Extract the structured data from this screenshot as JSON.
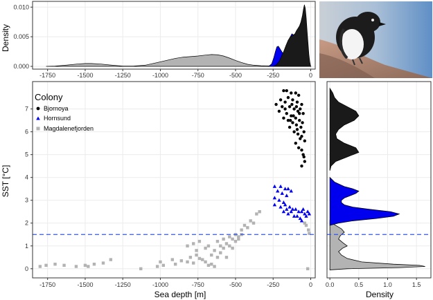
{
  "chart_data": [
    {
      "panel": "top-density",
      "type": "area",
      "xlabel": "",
      "ylabel": "Density",
      "xlim": [
        -1850,
        30
      ],
      "ylim": [
        0,
        0.0105
      ],
      "xticks": [
        "-1750",
        "-1500",
        "-1250",
        "-1000",
        "-750",
        "-500",
        "-250",
        "0"
      ],
      "xtick_values": [
        -1750,
        -1500,
        -1250,
        -1000,
        -750,
        -500,
        -250,
        0
      ],
      "yticks": [
        "0.000",
        "0.005",
        "0.010"
      ],
      "ytick_values": [
        0,
        0.005,
        0.01
      ],
      "series": [
        {
          "colony": "Magdalenefjorden",
          "color": "#b3b3b3",
          "x": [
            -1760,
            -1700,
            -1620,
            -1550,
            -1500,
            -1460,
            -1400,
            -1330,
            -1250,
            -1180,
            -1100,
            -1020,
            -960,
            -900,
            -850,
            -800,
            -750,
            -700,
            -660,
            -620,
            -580,
            -540,
            -500,
            -460,
            -420,
            -380,
            -330,
            -280,
            -240,
            -200,
            -160,
            -120,
            -80,
            -40,
            -10,
            0
          ],
          "y": [
            0.0,
            5e-05,
            0.00022,
            0.0004,
            0.00048,
            0.00048,
            0.0004,
            0.00022,
            5e-05,
            5e-05,
            0.0002,
            0.00065,
            0.001,
            0.00135,
            0.00155,
            0.00165,
            0.00175,
            0.0019,
            0.002,
            0.00195,
            0.00175,
            0.0014,
            0.001,
            0.00065,
            0.00035,
            0.0002,
            0.0001,
            8e-05,
            0.0001,
            0.00015,
            0.0002,
            0.0002,
            0.00025,
            0.0003,
            0.0002,
            0.0
          ]
        },
        {
          "colony": "Hornsund",
          "color": "#0000ee",
          "x": [
            -280,
            -260,
            -245,
            -235,
            -225,
            -215,
            -200,
            -185,
            -170,
            -155,
            -140,
            -125,
            -110,
            -95,
            -80,
            -65,
            -50,
            -40,
            -30,
            -20,
            -10,
            0
          ],
          "y": [
            0.0,
            0.0004,
            0.0015,
            0.0025,
            0.0033,
            0.0034,
            0.0028,
            0.0022,
            0.0025,
            0.0036,
            0.0048,
            0.0055,
            0.0052,
            0.0048,
            0.0058,
            0.0066,
            0.0055,
            0.0035,
            0.002,
            0.001,
            0.0003,
            0.0
          ]
        },
        {
          "colony": "Bjornoya",
          "color": "#1a1a1a",
          "x": [
            -250,
            -230,
            -210,
            -195,
            -180,
            -165,
            -150,
            -135,
            -120,
            -105,
            -95,
            -85,
            -75,
            -65,
            -55,
            -48,
            -42,
            -36,
            -30,
            -24,
            -18,
            -12,
            -6,
            0
          ],
          "y": [
            0.0,
            0.0002,
            0.0008,
            0.0016,
            0.0025,
            0.0035,
            0.0044,
            0.005,
            0.0052,
            0.0055,
            0.006,
            0.0064,
            0.0068,
            0.0075,
            0.0086,
            0.0097,
            0.0104,
            0.0098,
            0.0082,
            0.006,
            0.004,
            0.002,
            0.0007,
            0.0
          ]
        }
      ]
    },
    {
      "panel": "scatter",
      "type": "scatter",
      "xlabel": "Sea depth [m]",
      "ylabel": "SST [°C]",
      "xlim": [
        -1850,
        30
      ],
      "ylim": [
        -0.4,
        8.2
      ],
      "xticks": [
        "-1750",
        "-1500",
        "-1250",
        "-1000",
        "-750",
        "-500",
        "-250",
        "0"
      ],
      "xtick_values": [
        -1750,
        -1500,
        -1250,
        -1000,
        -750,
        -500,
        -250,
        0
      ],
      "yticks": [
        "0",
        "1",
        "2",
        "3",
        "4",
        "5",
        "6",
        "7"
      ],
      "ytick_values": [
        0,
        1,
        2,
        3,
        4,
        5,
        6,
        7
      ],
      "hline": {
        "y": 1.5,
        "color": "#3355ee",
        "style": "dashed"
      },
      "legend": {
        "title": "Colony",
        "placement": "top-left",
        "entries": [
          "Bjornoya",
          "Hornsund",
          "Magdalenefjorden"
        ]
      },
      "series": [
        {
          "name": "Bjornoya",
          "marker": "circle",
          "color": "#000000",
          "points": [
            [
              -180,
              7.8
            ],
            [
              -160,
              7.8
            ],
            [
              -130,
              7.7
            ],
            [
              -100,
              7.7
            ],
            [
              -80,
              7.6
            ],
            [
              -200,
              7.4
            ],
            [
              -150,
              7.5
            ],
            [
              -120,
              7.4
            ],
            [
              -90,
              7.3
            ],
            [
              -60,
              7.2
            ],
            [
              -230,
              7.2
            ],
            [
              -190,
              7.1
            ],
            [
              -170,
              7.0
            ],
            [
              -140,
              7.1
            ],
            [
              -110,
              7.0
            ],
            [
              -85,
              6.9
            ],
            [
              -70,
              7.0
            ],
            [
              -50,
              6.8
            ],
            [
              -210,
              6.9
            ],
            [
              -160,
              6.8
            ],
            [
              -130,
              6.7
            ],
            [
              -100,
              6.6
            ],
            [
              -75,
              6.5
            ],
            [
              -55,
              6.4
            ],
            [
              -180,
              6.6
            ],
            [
              -150,
              6.5
            ],
            [
              -120,
              6.4
            ],
            [
              -95,
              6.3
            ],
            [
              -65,
              6.2
            ],
            [
              -45,
              6.0
            ],
            [
              -140,
              6.2
            ],
            [
              -110,
              6.0
            ],
            [
              -85,
              5.9
            ],
            [
              -60,
              5.8
            ],
            [
              -40,
              5.6
            ],
            [
              -100,
              5.5
            ],
            [
              -80,
              5.3
            ],
            [
              -60,
              5.2
            ],
            [
              -50,
              5.0
            ],
            [
              -45,
              4.9
            ],
            [
              -40,
              4.7
            ],
            [
              -60,
              4.5
            ],
            [
              -170,
              7.3
            ],
            [
              -125,
              7.2
            ],
            [
              -95,
              7.1
            ],
            [
              -75,
              6.8
            ],
            [
              -115,
              6.7
            ],
            [
              -135,
              6.5
            ],
            [
              -90,
              6.1
            ],
            [
              -70,
              5.7
            ]
          ]
        },
        {
          "name": "Hornsund",
          "marker": "triangle",
          "color": "#0000ee",
          "points": [
            [
              -240,
              3.6
            ],
            [
              -200,
              3.6
            ],
            [
              -170,
              3.5
            ],
            [
              -150,
              3.5
            ],
            [
              -130,
              3.4
            ],
            [
              -220,
              3.4
            ],
            [
              -190,
              3.3
            ],
            [
              -160,
              3.2
            ],
            [
              -240,
              3.1
            ],
            [
              -210,
              3.0
            ],
            [
              -180,
              2.9
            ],
            [
              -240,
              2.8
            ],
            [
              -200,
              2.7
            ],
            [
              -170,
              2.8
            ],
            [
              -140,
              2.7
            ],
            [
              -120,
              2.6
            ],
            [
              -100,
              2.6
            ],
            [
              -80,
              2.5
            ],
            [
              -60,
              2.5
            ],
            [
              -40,
              2.4
            ],
            [
              -30,
              2.3
            ],
            [
              -150,
              2.4
            ],
            [
              -110,
              2.3
            ],
            [
              -90,
              2.3
            ],
            [
              -70,
              2.2
            ],
            [
              -130,
              2.5
            ],
            [
              -50,
              2.6
            ],
            [
              -20,
              2.5
            ],
            [
              -10,
              2.4
            ],
            [
              -160,
              2.6
            ],
            [
              -180,
              2.5
            ],
            [
              -60,
              2.1
            ]
          ]
        },
        {
          "name": "Magdalenefjorden",
          "marker": "square",
          "color": "#b3b3b3",
          "points": [
            [
              -1800,
              0.1
            ],
            [
              -1760,
              0.15
            ],
            [
              -1700,
              0.2
            ],
            [
              -1640,
              0.15
            ],
            [
              -1560,
              0.1
            ],
            [
              -1500,
              0.15
            ],
            [
              -1480,
              0.1
            ],
            [
              -1440,
              0.2
            ],
            [
              -1380,
              0.25
            ],
            [
              -1330,
              0.4
            ],
            [
              -1130,
              0.0
            ],
            [
              -1020,
              0.1
            ],
            [
              -1000,
              0.3
            ],
            [
              -980,
              0.15
            ],
            [
              -920,
              0.4
            ],
            [
              -900,
              0.2
            ],
            [
              -860,
              0.35
            ],
            [
              -820,
              0.3
            ],
            [
              -800,
              0.5
            ],
            [
              -780,
              0.25
            ],
            [
              -760,
              0.6
            ],
            [
              -740,
              0.45
            ],
            [
              -720,
              0.4
            ],
            [
              -700,
              0.3
            ],
            [
              -680,
              0.15
            ],
            [
              -660,
              0.2
            ],
            [
              -640,
              0.1
            ],
            [
              -620,
              0.5
            ],
            [
              -600,
              0.7
            ],
            [
              -580,
              0.9
            ],
            [
              -560,
              1.1
            ],
            [
              -540,
              1.0
            ],
            [
              -520,
              1.3
            ],
            [
              -500,
              1.5
            ],
            [
              -480,
              1.4
            ],
            [
              -460,
              1.7
            ],
            [
              -440,
              1.9
            ],
            [
              -420,
              1.8
            ],
            [
              -400,
              2.1
            ],
            [
              -380,
              2.0
            ],
            [
              -360,
              2.4
            ],
            [
              -340,
              2.5
            ],
            [
              -820,
              1.0
            ],
            [
              -780,
              1.1
            ],
            [
              -760,
              0.8
            ],
            [
              -740,
              1.2
            ],
            [
              -700,
              0.9
            ],
            [
              -680,
              1.0
            ],
            [
              -660,
              0.6
            ],
            [
              -640,
              0.8
            ],
            [
              -620,
              1.2
            ],
            [
              -600,
              1.0
            ],
            [
              -580,
              1.3
            ],
            [
              -560,
              0.5
            ],
            [
              -540,
              1.4
            ],
            [
              -520,
              0.9
            ],
            [
              -500,
              1.2
            ],
            [
              -480,
              1.3
            ],
            [
              -460,
              1.5
            ],
            [
              -20,
              0.0
            ],
            [
              -40,
              2.0
            ],
            [
              -30,
              1.9
            ],
            [
              -15,
              1.7
            ],
            [
              -10,
              1.55
            ]
          ]
        }
      ]
    },
    {
      "panel": "right-density",
      "type": "area",
      "orientation": "horizontal",
      "xlabel": "Density",
      "ylabel": "",
      "xlim": [
        -0.05,
        1.75
      ],
      "ylim": [
        -0.4,
        8.2
      ],
      "xticks": [
        "0.0",
        "0.5",
        "1.0",
        "1.5"
      ],
      "xtick_values": [
        0,
        0.5,
        1.0,
        1.5
      ],
      "hline": {
        "y": 1.5,
        "color": "#3355ee",
        "style": "dashed"
      },
      "series": [
        {
          "colony": "Magdalenefjorden",
          "color": "#b3b3b3",
          "y": [
            -0.05,
            0.0,
            0.05,
            0.1,
            0.15,
            0.2,
            0.3,
            0.45,
            0.6,
            0.75,
            0.9,
            1.0,
            1.15,
            1.3,
            1.45,
            1.6,
            1.75,
            1.9,
            2.0,
            2.1
          ],
          "x": [
            0.0,
            0.3,
            1.2,
            1.65,
            1.55,
            1.1,
            0.55,
            0.3,
            0.2,
            0.15,
            0.22,
            0.3,
            0.22,
            0.15,
            0.18,
            0.25,
            0.2,
            0.1,
            0.03,
            0.0
          ]
        },
        {
          "colony": "Hornsund",
          "color": "#0000ee",
          "y": [
            1.9,
            2.0,
            2.1,
            2.2,
            2.3,
            2.4,
            2.5,
            2.6,
            2.7,
            2.8,
            2.9,
            3.0,
            3.1,
            3.2,
            3.3,
            3.4,
            3.5,
            3.6,
            3.8,
            4.0
          ],
          "x": [
            0.0,
            0.15,
            0.4,
            0.8,
            1.1,
            1.2,
            1.05,
            0.7,
            0.4,
            0.25,
            0.2,
            0.2,
            0.25,
            0.35,
            0.45,
            0.5,
            0.4,
            0.25,
            0.08,
            0.0
          ]
        },
        {
          "colony": "Bjornoya",
          "color": "#1a1a1a",
          "y": [
            4.3,
            4.5,
            4.7,
            4.9,
            5.1,
            5.3,
            5.5,
            5.7,
            5.9,
            6.1,
            6.3,
            6.5,
            6.7,
            6.9,
            7.1,
            7.3,
            7.5,
            7.7,
            7.9
          ],
          "x": [
            0.0,
            0.02,
            0.1,
            0.3,
            0.5,
            0.45,
            0.25,
            0.12,
            0.1,
            0.15,
            0.25,
            0.42,
            0.5,
            0.45,
            0.3,
            0.15,
            0.08,
            0.05,
            0.0
          ]
        }
      ]
    }
  ],
  "photo": {
    "subject": "little auk bird on rock"
  }
}
